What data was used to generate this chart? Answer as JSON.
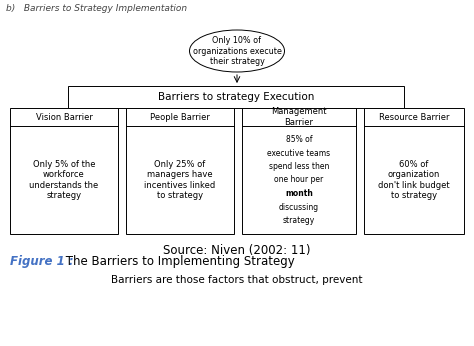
{
  "title_top": "b)   Barriers to Strategy Implementation",
  "ellipse_text": "Only 10% of\norganizations execute\ntheir strategy",
  "center_box_text": "Barriers to strategy Execution",
  "barrier_titles": [
    "Vision Barrier",
    "People Barrier",
    "Management\nBarrier",
    "Resource Barrier"
  ],
  "barrier_bodies": [
    "Only 5% of the\nworkforce\nunderstands the\nstrategy",
    "Only 25% of\nmanagers have\nincentives linked\nto strategy",
    "85% of\nexecutive teams\nspend less then\none hour per\nmonth\ndiscussing\nstrategy",
    "60% of\norganization\ndon't link budget\nto strategy"
  ],
  "management_bold_word": "month",
  "source_text": "Source: Niven (2002: 11)",
  "figure_label": "Figure 1 :",
  "figure_text": " The Barriers to Implementing Strategy",
  "bottom_text": "Barriers are those factors that obstruct, prevent",
  "bg_color": "#ffffff",
  "box_edge_color": "#000000",
  "arrow_color": "#000000",
  "text_color": "#000000",
  "figure_label_color": "#4472c4"
}
